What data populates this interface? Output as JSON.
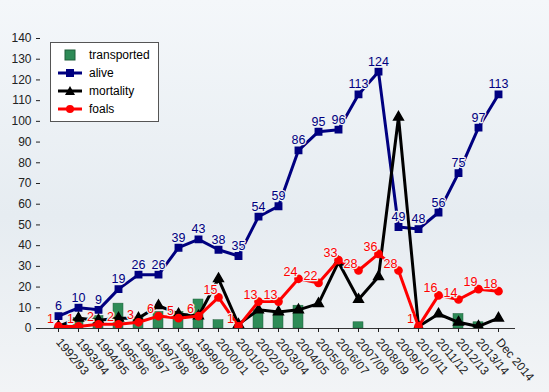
{
  "chart_data": {
    "type": "line",
    "categories": [
      "1992/93",
      "1993/94",
      "1994/95",
      "1995/96",
      "1996/97",
      "1997/98",
      "1998/99",
      "1999/00",
      "2000/01",
      "2001/02",
      "2002/03",
      "2003/04",
      "2004/05",
      "2005/06",
      "2006/07",
      "2007/08",
      "2008/09",
      "2009/10",
      "2010/11",
      "2011/12",
      "2012/13",
      "2013/14",
      "Dec 2014"
    ],
    "series": [
      {
        "name": "transported",
        "type": "bar",
        "color": "#2e8b57",
        "values": [
          0,
          5,
          6,
          12,
          5,
          8,
          8,
          14,
          4,
          0,
          9,
          8,
          11,
          0,
          0,
          3,
          0,
          0,
          0,
          0,
          7,
          3,
          0
        ]
      },
      {
        "name": "alive",
        "type": "line",
        "color": "#000080",
        "marker": "square",
        "data_labels": true,
        "values": [
          6,
          10,
          9,
          19,
          26,
          26,
          39,
          43,
          38,
          35,
          54,
          59,
          86,
          95,
          96,
          113,
          124,
          49,
          48,
          56,
          75,
          97,
          113
        ]
      },
      {
        "name": "mortality",
        "type": "line",
        "color": "#000000",
        "marker": "triangle",
        "values": [
          1,
          5,
          4,
          5,
          5,
          11,
          7,
          6,
          24,
          2,
          9,
          8,
          9,
          12,
          32,
          14,
          25,
          102,
          1,
          7,
          3,
          1,
          5
        ]
      },
      {
        "name": "foals",
        "type": "line",
        "color": "#ff0000",
        "marker": "circle",
        "data_labels": true,
        "values": [
          1,
          1,
          2,
          2,
          3,
          6,
          5,
          6,
          15,
          1,
          13,
          13,
          24,
          22,
          33,
          28,
          36,
          28,
          1,
          16,
          14,
          19,
          18
        ]
      }
    ],
    "ylim": [
      0,
      140
    ],
    "yticks": [
      0,
      10,
      20,
      30,
      40,
      50,
      60,
      70,
      80,
      90,
      100,
      110,
      120,
      130,
      140
    ],
    "grid": false,
    "legend": "top-left"
  }
}
